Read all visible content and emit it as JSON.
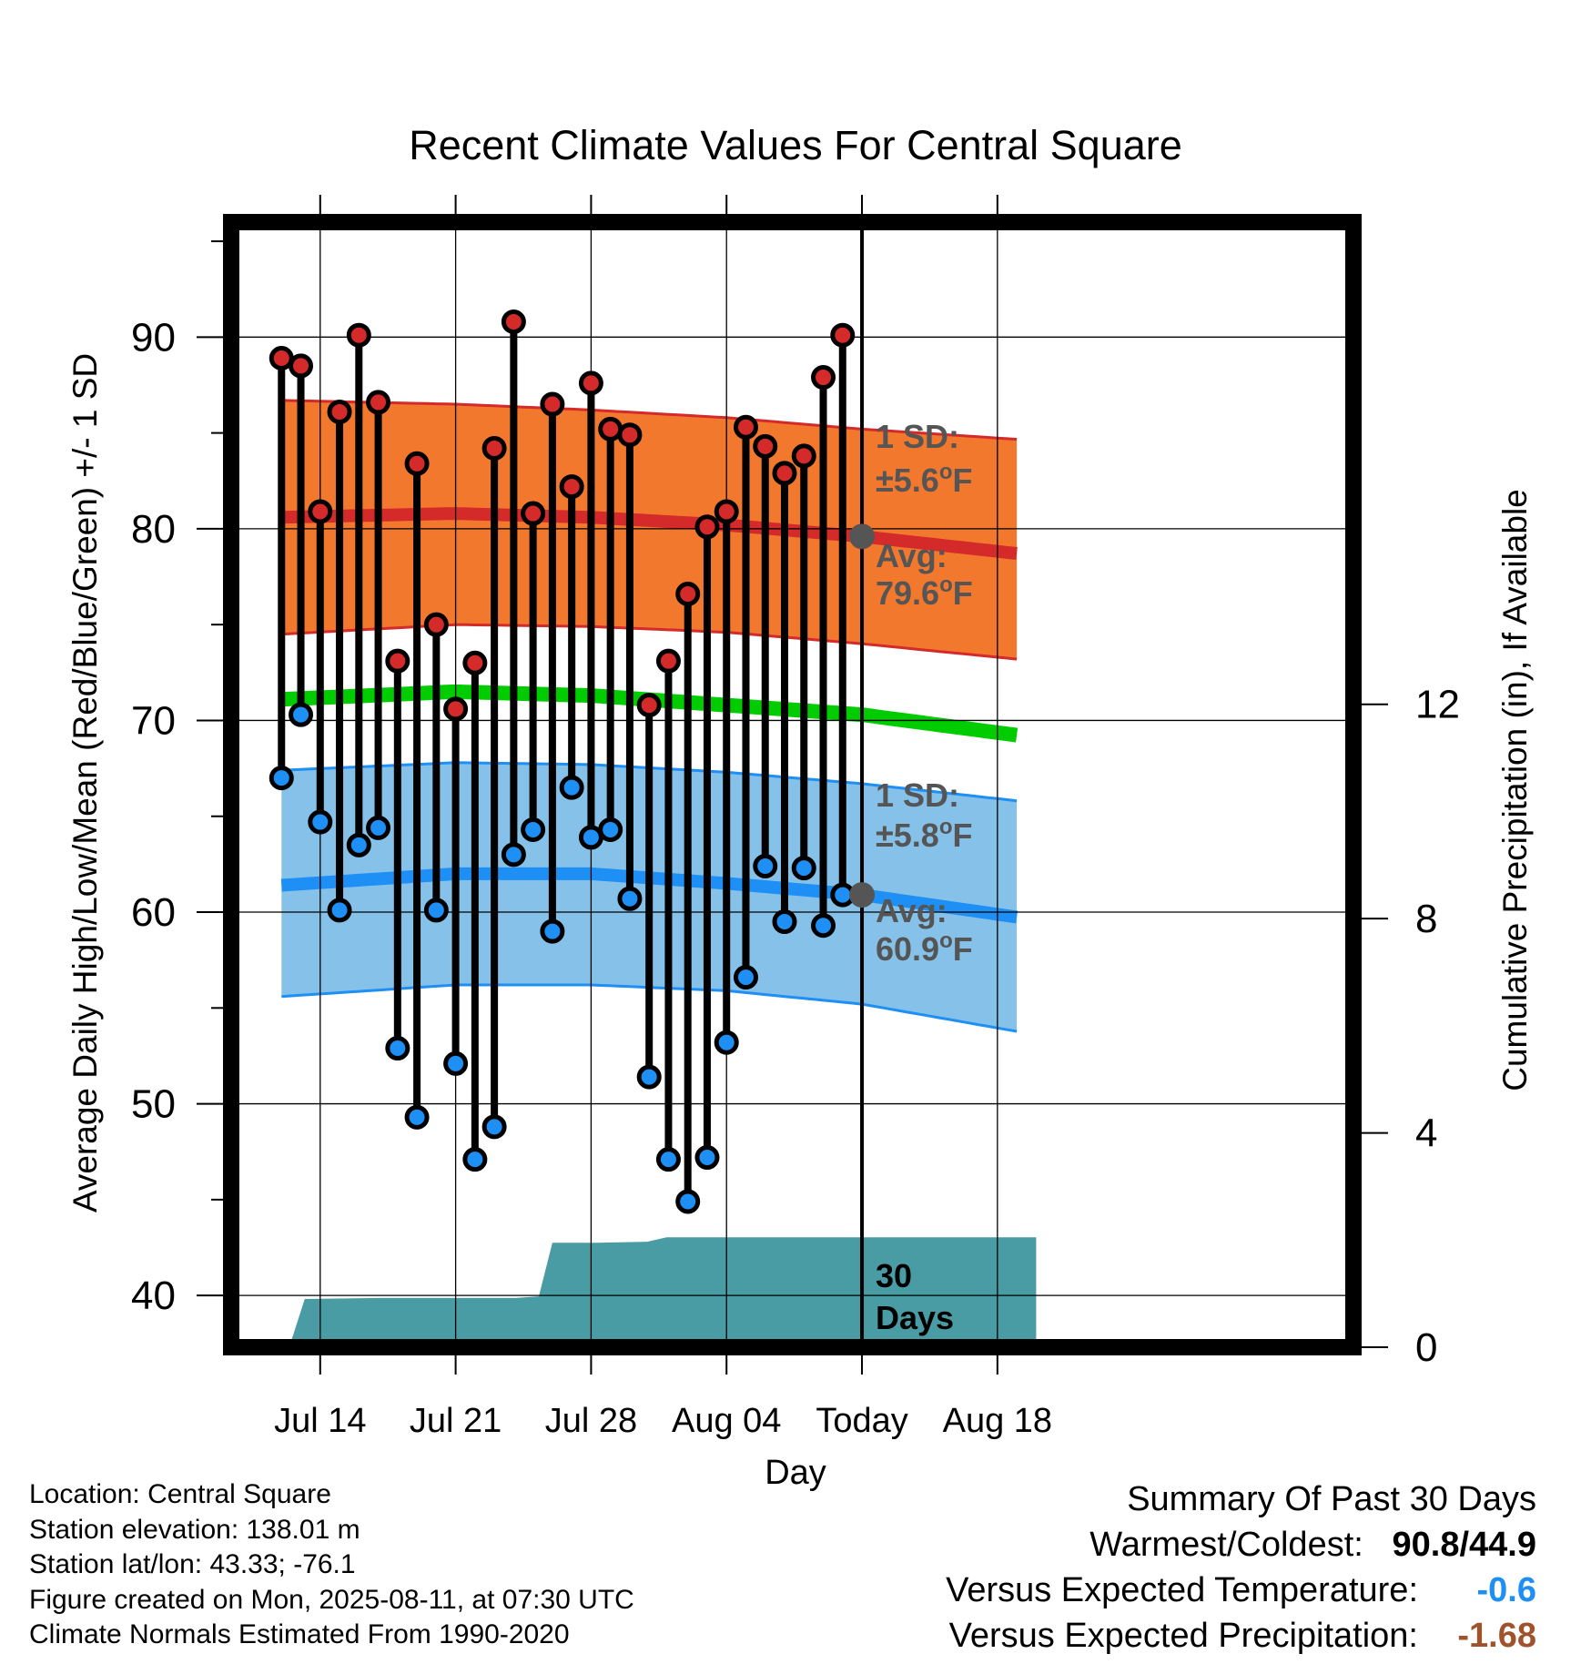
{
  "chart_data": {
    "type": "line",
    "title": "Recent Climate Values For Central Square",
    "xlabel": "Day",
    "ylabel": "Average Daily High/Low/Mean (Red/Blue/Green) +/- 1 SD",
    "y2label": "Cumulative Precipitation (in), If Available",
    "ylim": [
      37.3,
      96
    ],
    "y2lim": [
      0,
      21
    ],
    "xlim": [
      -4.6,
      53.4
    ],
    "x_ticks": [
      {
        "day": 0,
        "label": "Jul 14"
      },
      {
        "day": 7,
        "label": "Jul 21"
      },
      {
        "day": 14,
        "label": "Jul 28"
      },
      {
        "day": 21,
        "label": "Aug 04"
      },
      {
        "day": 28,
        "label": "Today"
      },
      {
        "day": 35,
        "label": "Aug 18"
      }
    ],
    "y_ticks": [
      40,
      50,
      60,
      70,
      80,
      90
    ],
    "y2_ticks": [
      0,
      4,
      8,
      12
    ],
    "grid": true,
    "today_day": 28,
    "daily": {
      "days": [
        -2,
        -1,
        0,
        1,
        2,
        3,
        4,
        5,
        6,
        7,
        8,
        9,
        10,
        11,
        12,
        13,
        14,
        15,
        16,
        17,
        18,
        19,
        20,
        21,
        22,
        23,
        24,
        25,
        26,
        27
      ],
      "high": [
        88.9,
        88.5,
        80.9,
        86.1,
        90.1,
        86.6,
        73.1,
        83.4,
        75.0,
        70.6,
        73.0,
        84.2,
        90.8,
        80.8,
        86.5,
        82.2,
        87.6,
        85.2,
        84.9,
        70.8,
        73.1,
        76.6,
        80.1,
        80.9,
        85.3,
        84.3,
        82.9,
        83.8,
        87.9,
        90.1
      ],
      "low": [
        67.0,
        70.3,
        64.7,
        60.1,
        63.5,
        64.4,
        52.9,
        49.3,
        60.1,
        52.1,
        47.1,
        48.8,
        63.0,
        64.3,
        59.0,
        66.5,
        63.9,
        64.3,
        60.7,
        51.4,
        47.1,
        44.9,
        47.2,
        53.2,
        56.6,
        62.4,
        59.5,
        62.3,
        59.3,
        60.9
      ]
    },
    "normals": {
      "days": [
        -2,
        7,
        14,
        21,
        28,
        37
      ],
      "high_avg": [
        80.6,
        80.8,
        80.6,
        80.2,
        79.6,
        78.6
      ],
      "high_upper": [
        86.7,
        86.5,
        86.2,
        85.8,
        85.2,
        84.6
      ],
      "high_lower": [
        74.5,
        75.0,
        74.9,
        74.6,
        74.0,
        73.1
      ],
      "mean_avg": [
        71.1,
        71.5,
        71.3,
        70.8,
        70.3,
        69.1
      ],
      "low_avg": [
        61.4,
        62.0,
        62.0,
        61.5,
        60.9,
        59.6
      ],
      "low_upper": [
        67.4,
        67.8,
        67.7,
        67.3,
        66.7,
        65.7
      ],
      "low_lower": [
        55.6,
        56.2,
        56.2,
        55.9,
        55.2,
        53.6
      ]
    },
    "precipitation": {
      "days": [
        -1.6,
        -0.8,
        3,
        10.1,
        11.3,
        12.0,
        13.2,
        14.3,
        16.9,
        17.9,
        37
      ],
      "cumulative": [
        0,
        0.9,
        0.92,
        0.92,
        0.95,
        1.95,
        1.95,
        1.95,
        1.97,
        2.05,
        2.05
      ]
    },
    "series": [
      {
        "name": "High",
        "color": "#d42a2a",
        "band_color": "#f2782e"
      },
      {
        "name": "Low",
        "color": "#1e8ff5",
        "band_color": "#85c1e8"
      },
      {
        "name": "Mean",
        "color": "#00cc00"
      },
      {
        "name": "Precipitation",
        "color": "#4a9ca4"
      }
    ],
    "annotations": {
      "high_sd_1": "1 SD:",
      "high_sd_2": "±5.6°F",
      "high_avg_1": "Avg:",
      "high_avg_2": "79.6°F",
      "low_sd_1": "1 SD:",
      "low_sd_2": "±5.8°F",
      "low_avg_1": "Avg:",
      "low_avg_2": "60.9°F",
      "precip_1": "30",
      "precip_2": "Days"
    }
  },
  "footer": {
    "location": "Location: Central Square",
    "elevation": "Station elevation: 138.01 m",
    "latlon": "Station lat/lon: 43.33; -76.1",
    "created": "Figure created on Mon, 2025-08-11, at 07:30 UTC",
    "normals": "Climate Normals Estimated From 1990-2020"
  },
  "summary": {
    "title": "Summary Of Past 30 Days",
    "warmest_label": "Warmest/Coldest:",
    "warmest_value": "90.8/44.9",
    "temp_label": "Versus Expected Temperature:",
    "temp_value": "-0.6",
    "temp_color": "#1e8ff5",
    "precip_label": "Versus Expected Precipitation:",
    "precip_value": "-1.68",
    "precip_color": "#a0522d"
  }
}
